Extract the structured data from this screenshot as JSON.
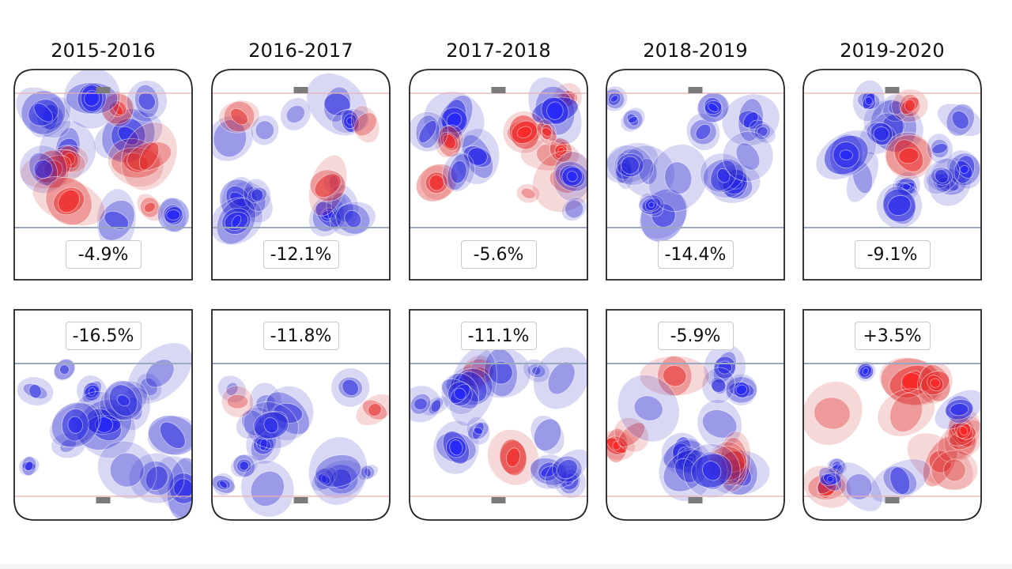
{
  "chart_data": {
    "type": "heatmap",
    "seasons": [
      "2015-2016",
      "2016-2017",
      "2017-2018",
      "2018-2019",
      "2019-2020"
    ],
    "rows": [
      {
        "row": "top",
        "values": [
          "-4.9%",
          "-12.1%",
          "-5.6%",
          "-14.4%",
          "-9.1%"
        ]
      },
      {
        "row": "bottom",
        "values": [
          "-16.5%",
          "-11.8%",
          "-11.1%",
          "-5.9%",
          "+3.5%"
        ]
      }
    ],
    "colors": {
      "negative": "#0000dd",
      "positive": "#dd1111",
      "rink_line": "#9aa8c0",
      "goal": "#7b7b7b",
      "border": "#222222"
    }
  }
}
